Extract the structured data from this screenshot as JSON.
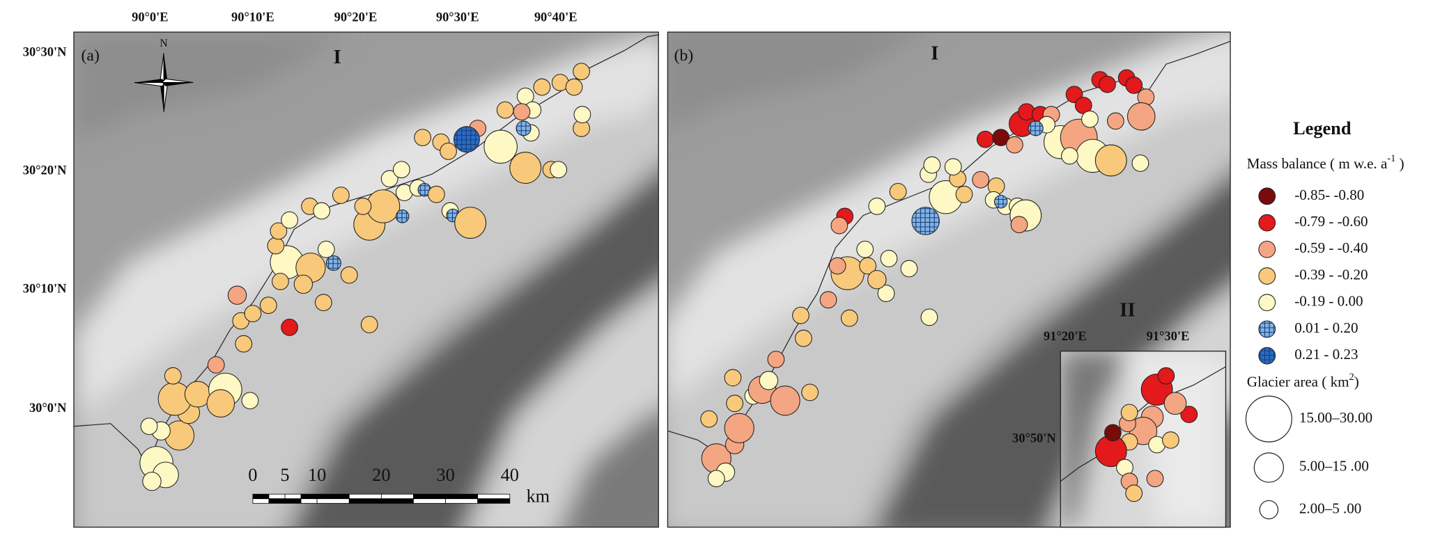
{
  "panels": [
    {
      "label": "(a)",
      "region": "I",
      "north": "N",
      "lon_ticks": [
        "90°0'E",
        "90°10'E",
        "90°20'E",
        "90°30'E",
        "90°40'E"
      ],
      "lat_ticks": [
        "30°30'N",
        "30°20'N",
        "30°10'N",
        "30°0'N"
      ],
      "scale_bar": {
        "ticks": [
          0,
          5,
          10,
          20,
          30,
          40
        ],
        "unit": "km"
      }
    },
    {
      "label": "(b)",
      "region": "I",
      "inset": {
        "region": "II",
        "lon_ticks": [
          "91°20'E",
          "91°30'E"
        ],
        "lat_ticks": [
          "30°50'N"
        ]
      }
    }
  ],
  "legend": {
    "title": "Legend",
    "mass_balance_title": {
      "text": "Mass balance ( m w.e. a",
      "superscript": "-1",
      "suffix": " )"
    },
    "classes": [
      {
        "label": "-0.85- -0.80",
        "color": "#7a0b0b"
      },
      {
        "label": "-0.79 - -0.60",
        "color": "#e3191b"
      },
      {
        "label": "-0.59 - -0.40",
        "color": "#f4a582"
      },
      {
        "label": "-0.39 - -0.20",
        "color": "#f8c97a"
      },
      {
        "label": "-0.19 - 0.00",
        "color": "#fdf8c4"
      },
      {
        "label": "0.01 - 0.20",
        "color": "#7fb2e5",
        "hatched": true
      },
      {
        "label": "0.21 - 0.23",
        "color": "#2a6cc4",
        "hatched": true
      }
    ],
    "area_title": {
      "text": "Glacier area ( km",
      "superscript": "2",
      "suffix": ")"
    },
    "area_classes": [
      "15.00–30.00",
      "5.00–15 .00",
      "2.00–5 .00"
    ]
  }
}
